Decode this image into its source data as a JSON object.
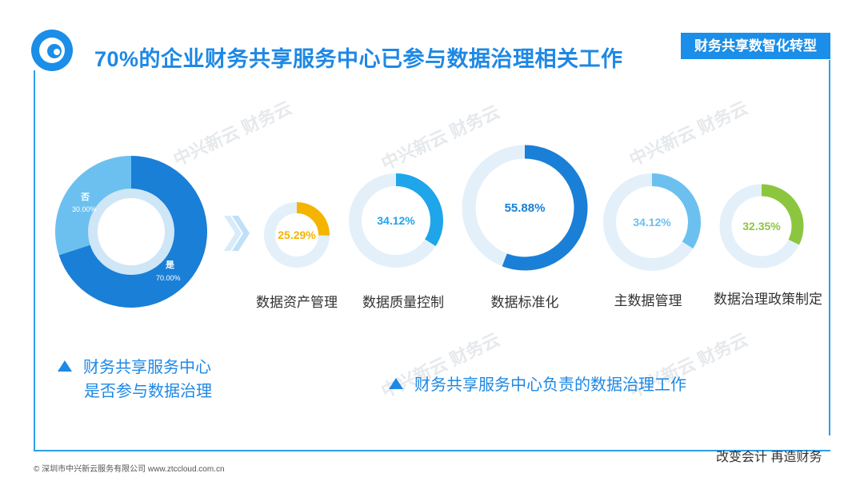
{
  "header": {
    "title": "70%的企业财务共享服务中心已参与数据治理相关工作",
    "badge": "财务共享数智化转型"
  },
  "footer": {
    "slogan": "改变会计  再造财务",
    "copyright": "© 深圳市中兴新云服务有限公司  www.ztccloud.com.cn"
  },
  "watermark": {
    "text": "中兴新云 财务云"
  },
  "legend": {
    "left": [
      "财务共享服务中心",
      "是否参与数据治理"
    ],
    "right": "财务共享服务中心负责的数据治理工作"
  },
  "colors": {
    "accent": "#1e88e5",
    "dark_blue": "#1a7fd6",
    "light_blue": "#6cc0f0",
    "yellow": "#f5b400",
    "green": "#8cc63f",
    "track": "#e3f0fa"
  },
  "chart_data": [
    {
      "type": "pie",
      "categories": [
        "否",
        "是"
      ],
      "values": [
        30.0,
        70.0
      ],
      "labels": [
        "30.00%",
        "70.00%"
      ],
      "colors": [
        "#6cc0f0",
        "#1a7fd6"
      ]
    },
    {
      "type": "donut-gauges",
      "categories": [
        "数据资产管理",
        "数据质量控制",
        "数据标准化",
        "主数据管理",
        "数据治理政策制定"
      ],
      "values": [
        25.29,
        34.12,
        55.88,
        34.12,
        32.35
      ],
      "labels": [
        "25.29%",
        "34.12%",
        "55.88%",
        "34.12%",
        "32.35%"
      ],
      "colors": [
        "#f5b400",
        "#1fa5ea",
        "#1a7fd6",
        "#6cc0f0",
        "#8cc63f"
      ]
    }
  ]
}
